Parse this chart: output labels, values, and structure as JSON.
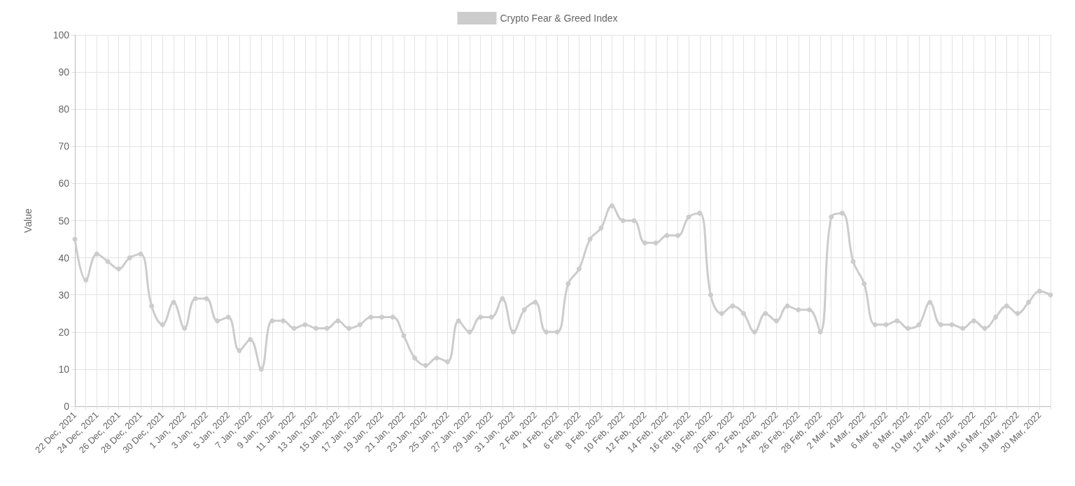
{
  "chart_data": {
    "type": "line",
    "ylabel": "Value",
    "categories": [
      "22 Dec, 2021",
      null,
      "24 Dec, 2021",
      null,
      "26 Dec, 2021",
      null,
      "28 Dec, 2021",
      null,
      "30 Dec, 2021",
      null,
      "1 Jan, 2022",
      null,
      "3 Jan, 2022",
      null,
      "5 Jan, 2022",
      null,
      "7 Jan, 2022",
      null,
      "9 Jan, 2022",
      null,
      "11 Jan, 2022",
      null,
      "13 Jan, 2022",
      null,
      "15 Jan, 2022",
      null,
      "17 Jan, 2022",
      null,
      "19 Jan, 2022",
      null,
      "21 Jan, 2022",
      null,
      "23 Jan, 2022",
      null,
      "25 Jan, 2022",
      null,
      "27 Jan, 2022",
      null,
      "29 Jan, 2022",
      null,
      "31 Jan, 2022",
      null,
      "2 Feb, 2022",
      null,
      "4 Feb, 2022",
      null,
      "6 Feb, 2022",
      null,
      "8 Feb, 2022",
      null,
      "10 Feb, 2022",
      null,
      "12 Feb, 2022",
      null,
      "14 Feb, 2022",
      null,
      "16 Feb, 2022",
      null,
      "18 Feb, 2022",
      null,
      "20 Feb, 2022",
      null,
      "22 Feb, 2022",
      null,
      "24 Feb, 2022",
      null,
      "26 Feb, 2022",
      null,
      "28 Feb, 2022",
      null,
      "2 Mar, 2022",
      null,
      "4 Mar, 2022",
      null,
      "6 Mar, 2022",
      null,
      "8 Mar, 2022",
      null,
      "10 Mar, 2022",
      null,
      "12 Mar, 2022",
      null,
      "14 Mar, 2022",
      null,
      "16 Mar, 2022",
      null,
      "18 Mar, 2022",
      null,
      "20 Mar, 2022",
      null
    ],
    "series": [
      {
        "name": "Crypto Fear & Greed Index",
        "color": "#cccccc",
        "values": [
          45,
          34,
          41,
          39,
          37,
          40,
          41,
          27,
          22,
          28,
          21,
          29,
          29,
          23,
          24,
          15,
          18,
          10,
          23,
          23,
          21,
          22,
          21,
          21,
          23,
          21,
          22,
          24,
          24,
          24,
          19,
          13,
          11,
          13,
          12,
          23,
          20,
          24,
          24,
          29,
          20,
          26,
          28,
          20,
          20,
          33,
          37,
          45,
          48,
          54,
          50,
          50,
          44,
          44,
          46,
          46,
          51,
          52,
          30,
          25,
          27,
          25,
          20,
          25,
          23,
          27,
          26,
          26,
          20,
          51,
          52,
          39,
          33,
          22,
          22,
          23,
          21,
          22,
          28,
          22,
          22,
          21,
          23,
          21,
          24,
          27,
          25,
          28,
          31,
          30
        ]
      }
    ],
    "ylim": [
      0,
      100
    ],
    "yticks": [
      0,
      10,
      20,
      30,
      40,
      50,
      60,
      70,
      80,
      90,
      100
    ],
    "grid": true,
    "legend": "top",
    "marker": "circle",
    "line_style": "solid"
  }
}
